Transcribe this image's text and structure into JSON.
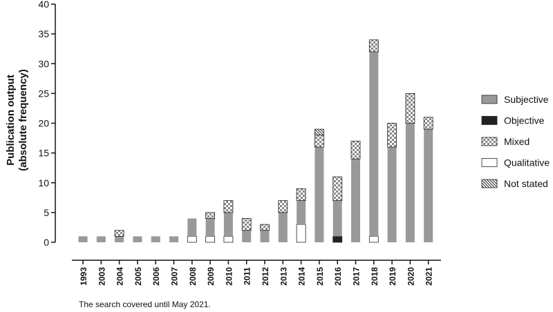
{
  "chart_data": {
    "type": "bar",
    "stacked": true,
    "title": "",
    "xlabel": "",
    "ylabel_line1": "Publication output",
    "ylabel_line2": "(absolute frequency)",
    "ylim": [
      0,
      40
    ],
    "yticks": [
      0,
      5,
      10,
      15,
      20,
      25,
      30,
      35,
      40
    ],
    "categories": [
      "1993",
      "2003",
      "2004",
      "2005",
      "2006",
      "2007",
      "2008",
      "2009",
      "2010",
      "2011",
      "2012",
      "2013",
      "2014",
      "2015",
      "2016",
      "2017",
      "2018",
      "2019",
      "2020",
      "2021"
    ],
    "series": [
      {
        "name": "Qualitative",
        "pattern": "white",
        "values": [
          0,
          0,
          0,
          0,
          0,
          0,
          1,
          1,
          1,
          0,
          0,
          0,
          3,
          0,
          0,
          0,
          1,
          0,
          0,
          0
        ]
      },
      {
        "name": "Objective",
        "pattern": "black",
        "values": [
          0,
          0,
          0,
          0,
          0,
          0,
          0,
          0,
          0,
          0,
          0,
          0,
          0,
          0,
          1,
          0,
          0,
          0,
          0,
          0
        ]
      },
      {
        "name": "Subjective",
        "pattern": "gray",
        "values": [
          1,
          1,
          1,
          1,
          1,
          1,
          3,
          3,
          4,
          2,
          2,
          5,
          4,
          16,
          6,
          14,
          31,
          16,
          20,
          19
        ]
      },
      {
        "name": "Mixed",
        "pattern": "checker",
        "values": [
          0,
          0,
          1,
          0,
          0,
          0,
          0,
          1,
          2,
          2,
          1,
          2,
          2,
          2,
          4,
          3,
          2,
          4,
          5,
          2
        ]
      },
      {
        "name": "Not stated",
        "pattern": "hatch",
        "values": [
          0,
          0,
          0,
          0,
          0,
          0,
          0,
          0,
          0,
          0,
          0,
          0,
          0,
          1,
          0,
          0,
          0,
          0,
          0,
          0
        ]
      }
    ],
    "legend_order": [
      "Subjective",
      "Objective",
      "Mixed",
      "Qualitative",
      "Not stated"
    ],
    "legend_position": "right",
    "grid": false,
    "colors": {
      "gray": "#999999",
      "black": "#222222",
      "outline": "#222222"
    }
  },
  "footnote": "The search covered until May 2021."
}
